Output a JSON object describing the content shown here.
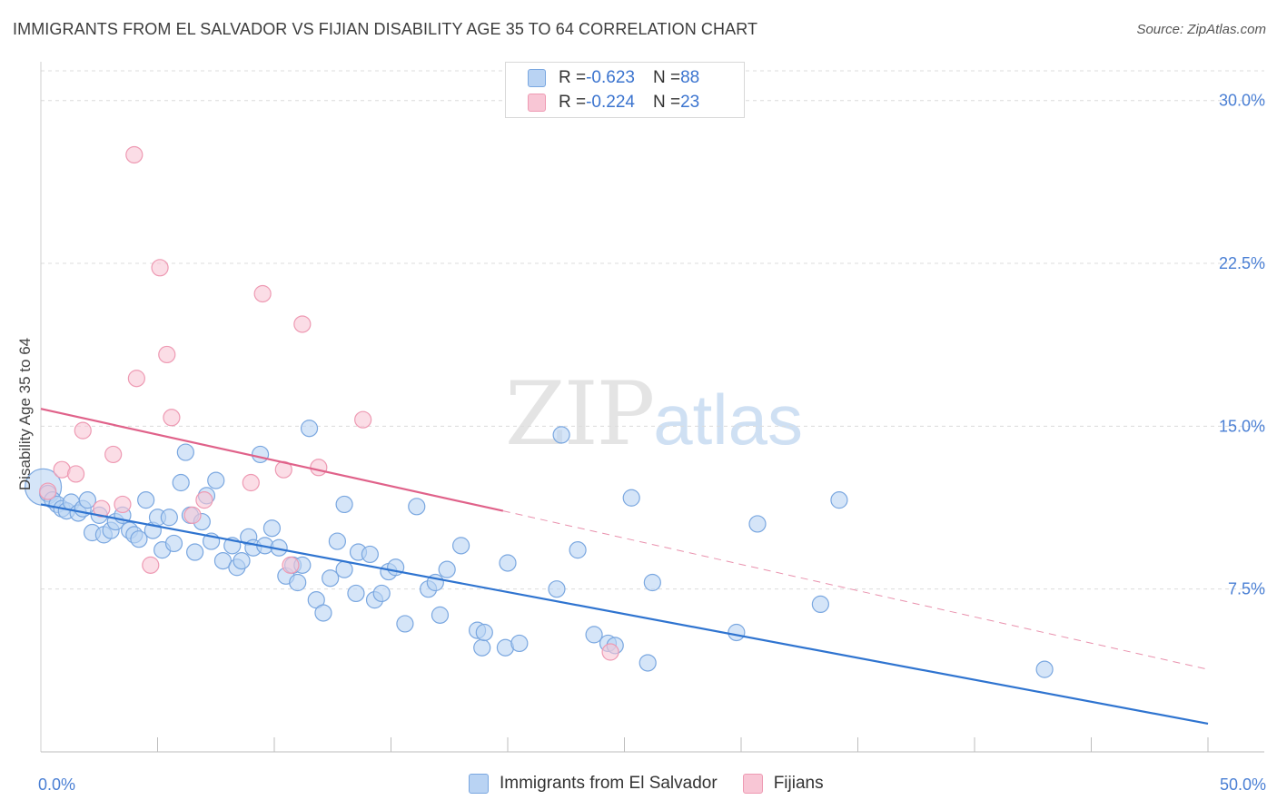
{
  "header": {
    "title": "IMMIGRANTS FROM EL SALVADOR VS FIJIAN DISABILITY AGE 35 TO 64 CORRELATION CHART",
    "source": "Source: ZipAtlas.com"
  },
  "watermark": {
    "zip": "ZIP",
    "atlas": "atlas"
  },
  "legend": {
    "rows": [
      {
        "r_label": "R = ",
        "r_value": "-0.623",
        "n_label": "N = ",
        "n_value": "88"
      },
      {
        "r_label": "R = ",
        "r_value": "-0.224",
        "n_label": "N = ",
        "n_value": "23"
      }
    ]
  },
  "colors": {
    "blue_fill": "#b9d3f3",
    "blue_stroke": "#7aa7e0",
    "blue_line": "#2f74d0",
    "pink_fill": "#f8c6d5",
    "pink_stroke": "#ee9ab3",
    "pink_line": "#e0628a",
    "grid": "#dcdcdc",
    "tick_text": "#4a7fd4"
  },
  "chart_data": {
    "type": "scatter",
    "title": "IMMIGRANTS FROM EL SALVADOR VS FIJIAN DISABILITY AGE 35 TO 64 CORRELATION CHART",
    "xlabel": "",
    "ylabel": "Disability Age 35 to 64",
    "xlim": [
      0,
      50
    ],
    "ylim": [
      0,
      31.2
    ],
    "x_tick_labels": [
      {
        "value": 0,
        "label": "0.0%"
      },
      {
        "value": 50,
        "label": "50.0%"
      }
    ],
    "y_tick_labels": [
      {
        "value": 7.5,
        "label": "7.5%"
      },
      {
        "value": 15,
        "label": "15.0%"
      },
      {
        "value": 22.5,
        "label": "22.5%"
      },
      {
        "value": 30,
        "label": "30.0%"
      }
    ],
    "grid": "horizontal dashed",
    "legend_position": "bottom",
    "series": [
      {
        "name": "Immigrants from El Salvador",
        "color": "#b9d3f3",
        "points": [
          [
            0.1,
            12.2
          ],
          [
            0.3,
            11.9
          ],
          [
            0.5,
            11.6
          ],
          [
            0.7,
            11.4
          ],
          [
            0.9,
            11.2
          ],
          [
            1.1,
            11.1
          ],
          [
            1.3,
            11.5
          ],
          [
            1.6,
            11.0
          ],
          [
            1.8,
            11.2
          ],
          [
            2.0,
            11.6
          ],
          [
            2.2,
            10.1
          ],
          [
            2.5,
            10.9
          ],
          [
            2.7,
            10.0
          ],
          [
            3.0,
            10.2
          ],
          [
            3.2,
            10.6
          ],
          [
            3.5,
            10.9
          ],
          [
            3.8,
            10.2
          ],
          [
            4.0,
            10.0
          ],
          [
            4.2,
            9.8
          ],
          [
            4.5,
            11.6
          ],
          [
            4.8,
            10.2
          ],
          [
            5.0,
            10.8
          ],
          [
            5.2,
            9.3
          ],
          [
            5.5,
            10.8
          ],
          [
            5.7,
            9.6
          ],
          [
            6.0,
            12.4
          ],
          [
            6.2,
            13.8
          ],
          [
            6.4,
            10.9
          ],
          [
            6.6,
            9.2
          ],
          [
            6.9,
            10.6
          ],
          [
            7.1,
            11.8
          ],
          [
            7.3,
            9.7
          ],
          [
            7.5,
            12.5
          ],
          [
            7.8,
            8.8
          ],
          [
            8.2,
            9.5
          ],
          [
            8.4,
            8.5
          ],
          [
            8.6,
            8.8
          ],
          [
            8.9,
            9.9
          ],
          [
            9.1,
            9.4
          ],
          [
            9.4,
            13.7
          ],
          [
            9.6,
            9.5
          ],
          [
            9.9,
            10.3
          ],
          [
            10.2,
            9.4
          ],
          [
            10.5,
            8.1
          ],
          [
            10.8,
            8.6
          ],
          [
            11.0,
            7.8
          ],
          [
            11.2,
            8.6
          ],
          [
            11.5,
            14.9
          ],
          [
            11.8,
            7.0
          ],
          [
            12.1,
            6.4
          ],
          [
            12.4,
            8.0
          ],
          [
            12.7,
            9.7
          ],
          [
            13.0,
            11.4
          ],
          [
            13.0,
            8.4
          ],
          [
            13.5,
            7.3
          ],
          [
            13.6,
            9.2
          ],
          [
            14.1,
            9.1
          ],
          [
            14.3,
            7.0
          ],
          [
            14.6,
            7.3
          ],
          [
            14.9,
            8.3
          ],
          [
            15.2,
            8.5
          ],
          [
            15.6,
            5.9
          ],
          [
            16.1,
            11.3
          ],
          [
            16.6,
            7.5
          ],
          [
            16.9,
            7.8
          ],
          [
            17.1,
            6.3
          ],
          [
            17.4,
            8.4
          ],
          [
            18.0,
            9.5
          ],
          [
            18.7,
            5.6
          ],
          [
            18.9,
            4.8
          ],
          [
            19.0,
            5.5
          ],
          [
            19.9,
            4.8
          ],
          [
            20.0,
            8.7
          ],
          [
            20.5,
            5.0
          ],
          [
            22.1,
            7.5
          ],
          [
            22.3,
            14.6
          ],
          [
            23.0,
            9.3
          ],
          [
            23.7,
            5.4
          ],
          [
            24.3,
            5.0
          ],
          [
            25.3,
            11.7
          ],
          [
            24.6,
            4.9
          ],
          [
            26.0,
            4.1
          ],
          [
            26.2,
            7.8
          ],
          [
            29.8,
            5.5
          ],
          [
            30.7,
            10.5
          ],
          [
            33.4,
            6.8
          ],
          [
            34.2,
            11.6
          ],
          [
            43.0,
            3.8
          ]
        ]
      },
      {
        "name": "Fijians",
        "color": "#f8c6d5",
        "points": [
          [
            0.3,
            12.0
          ],
          [
            0.9,
            13.0
          ],
          [
            1.5,
            12.8
          ],
          [
            1.8,
            14.8
          ],
          [
            2.6,
            11.2
          ],
          [
            3.1,
            13.7
          ],
          [
            3.5,
            11.4
          ],
          [
            4.0,
            27.5
          ],
          [
            4.1,
            17.2
          ],
          [
            4.7,
            8.6
          ],
          [
            5.1,
            22.3
          ],
          [
            5.4,
            18.3
          ],
          [
            5.6,
            15.4
          ],
          [
            6.5,
            10.9
          ],
          [
            7.0,
            11.6
          ],
          [
            9.0,
            12.4
          ],
          [
            9.5,
            21.1
          ],
          [
            10.4,
            13.0
          ],
          [
            10.7,
            8.6
          ],
          [
            11.2,
            19.7
          ],
          [
            11.9,
            13.1
          ],
          [
            13.8,
            15.3
          ],
          [
            24.4,
            4.6
          ]
        ]
      }
    ],
    "trend_lines": [
      {
        "series": "Immigrants from El Salvador",
        "x": [
          0,
          50
        ],
        "y": [
          11.4,
          1.3
        ],
        "style": "solid"
      },
      {
        "series": "Fijians",
        "x": [
          0,
          19.8
        ],
        "y": [
          15.8,
          11.1
        ],
        "style": "solid"
      },
      {
        "series": "Fijians",
        "x": [
          19.8,
          50
        ],
        "y": [
          11.1,
          3.8
        ],
        "style": "dashed"
      }
    ]
  },
  "bottom_legend": {
    "items": [
      {
        "label": "Immigrants from El Salvador"
      },
      {
        "label": "Fijians"
      }
    ]
  }
}
